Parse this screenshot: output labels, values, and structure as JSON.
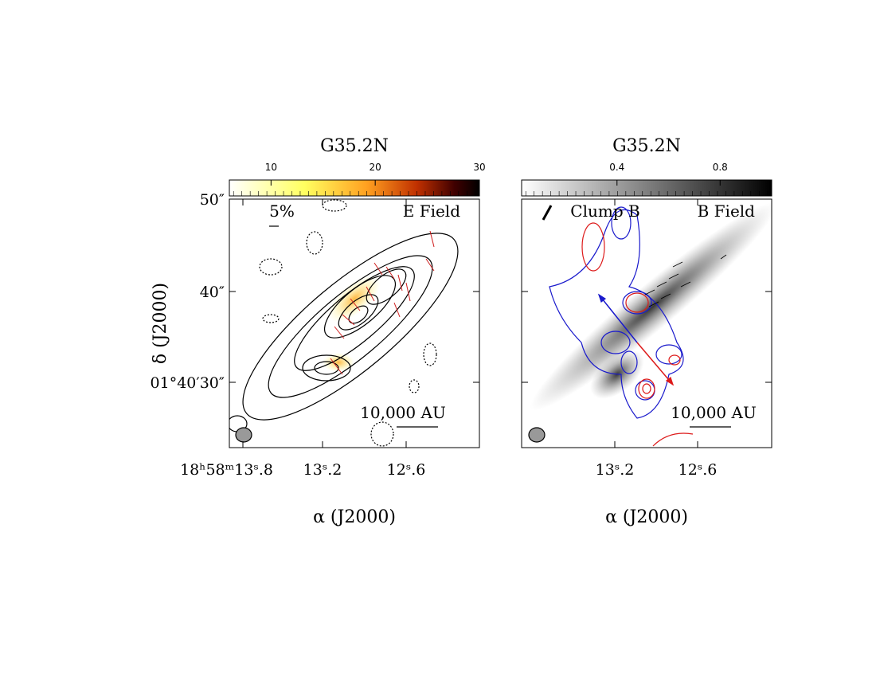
{
  "figure": {
    "panels": [
      {
        "title": "G35.2N",
        "colorbar": {
          "range": [
            6,
            30
          ],
          "ticks": [
            10,
            20,
            30
          ]
        },
        "ra_ticks": [
          "18ʰ58ᵐ13ˢ.8",
          "13ˢ.2",
          "12ˢ.6"
        ],
        "dec_ticks": [
          "50″",
          "40″",
          "01°40′30″"
        ],
        "xlabel": "α  (J2000)",
        "ylabel": "δ  (J2000)",
        "labels": [
          "5%",
          "E Field",
          "10,000 AU"
        ]
      },
      {
        "title": "G35.2N",
        "colorbar": {
          "range": [
            0.03,
            1.0
          ],
          "ticks": [
            0.4,
            0.8
          ]
        },
        "ra_ticks": [
          "13ˢ.2",
          "12ˢ.6"
        ],
        "xlabel": "α  (J2000)",
        "labels": [
          "Clump B",
          "B Field",
          "10,000 AU"
        ]
      }
    ]
  }
}
